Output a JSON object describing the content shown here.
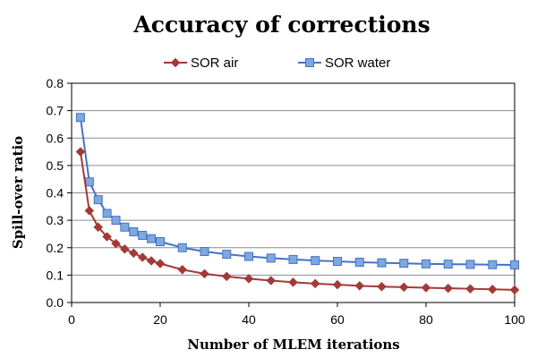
{
  "chart_data": {
    "type": "line",
    "title": "Accuracy of corrections",
    "xlabel": "Number of MLEM iterations",
    "ylabel": "Spill-over ratio",
    "xlim": [
      0,
      100
    ],
    "ylim": [
      0,
      0.8
    ],
    "x_ticks": [
      "0",
      "20",
      "40",
      "60",
      "80",
      "100"
    ],
    "y_ticks": [
      "0.0",
      "0.1",
      "0.2",
      "0.3",
      "0.4",
      "0.5",
      "0.6",
      "0.7",
      "0.8"
    ],
    "grid": true,
    "legend_position": "top",
    "x": [
      2,
      4,
      6,
      8,
      10,
      12,
      14,
      16,
      18,
      20,
      25,
      30,
      35,
      40,
      45,
      50,
      55,
      60,
      65,
      70,
      75,
      80,
      85,
      90,
      95,
      100
    ],
    "series": [
      {
        "name": "SOR air",
        "color": "#A33A36",
        "marker": "diamond",
        "values": [
          0.55,
          0.335,
          0.275,
          0.24,
          0.215,
          0.195,
          0.18,
          0.165,
          0.152,
          0.142,
          0.12,
          0.105,
          0.095,
          0.087,
          0.08,
          0.074,
          0.069,
          0.065,
          0.061,
          0.058,
          0.056,
          0.054,
          0.052,
          0.05,
          0.048,
          0.046
        ]
      },
      {
        "name": "SOR water",
        "color": "#4472C4",
        "marker": "square",
        "values": [
          0.675,
          0.44,
          0.375,
          0.325,
          0.3,
          0.275,
          0.258,
          0.245,
          0.233,
          0.222,
          0.2,
          0.186,
          0.176,
          0.168,
          0.162,
          0.157,
          0.153,
          0.15,
          0.147,
          0.145,
          0.143,
          0.141,
          0.14,
          0.139,
          0.138,
          0.137
        ]
      }
    ]
  }
}
